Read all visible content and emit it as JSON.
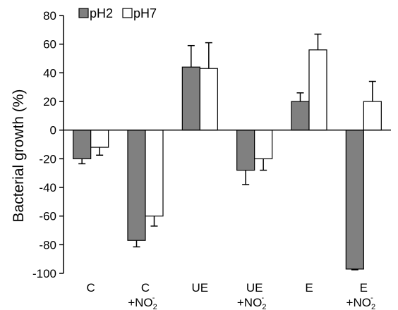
{
  "chart_data": {
    "type": "bar",
    "ylabel": "Bacterial growth (%)",
    "xlabel": "",
    "ylim": [
      -100,
      80
    ],
    "yticks": [
      80,
      60,
      40,
      20,
      0,
      -20,
      -40,
      -60,
      -80,
      -100
    ],
    "grid": false,
    "legend_position": "top-left",
    "categories": [
      {
        "main": "C",
        "second": ""
      },
      {
        "main": "C",
        "second": "+NO",
        "sub": "2",
        "sup": "-"
      },
      {
        "main": "UE",
        "second": ""
      },
      {
        "main": "UE",
        "second": "+NO",
        "sub": "2",
        "sup": "-"
      },
      {
        "main": "E",
        "second": ""
      },
      {
        "main": "E",
        "second": "+NO",
        "sub": "2",
        "sup": "-"
      }
    ],
    "series": [
      {
        "name": "pH2",
        "color": "#808080",
        "values": [
          -20,
          -77,
          44,
          -28,
          20,
          -97
        ],
        "errors": [
          3.5,
          4.5,
          15,
          10,
          6,
          0.5
        ]
      },
      {
        "name": "pH7",
        "color": "#ffffff",
        "values": [
          -12,
          -60,
          43,
          -20,
          56,
          20
        ],
        "errors": [
          5.5,
          7,
          18,
          8,
          11,
          14
        ]
      }
    ]
  }
}
